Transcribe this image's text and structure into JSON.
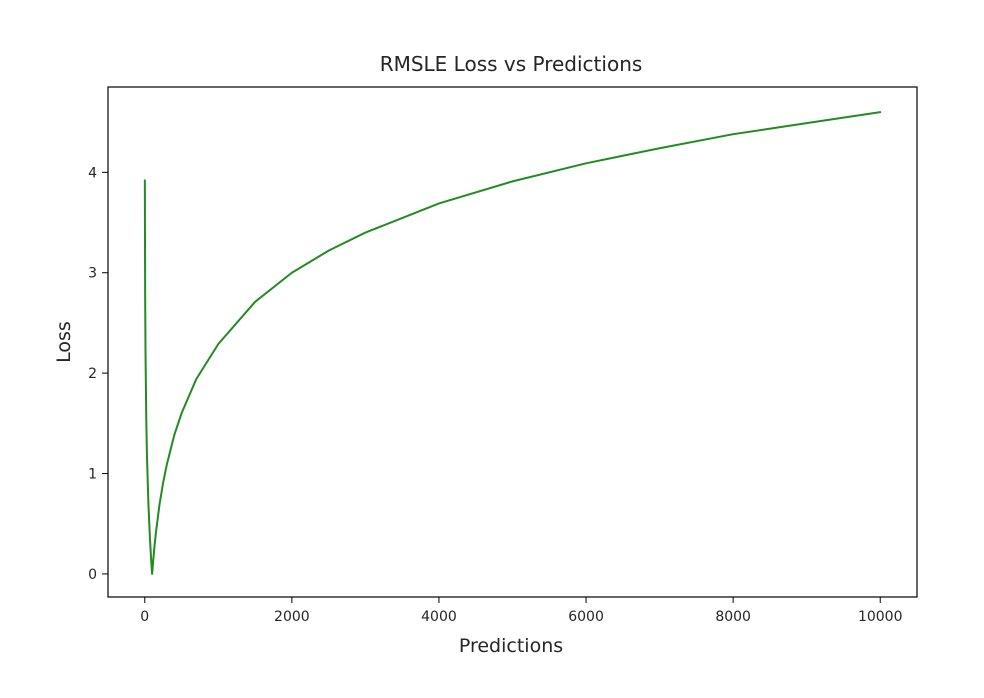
{
  "chart_data": {
    "type": "line",
    "title": "RMSLE Loss vs Predictions",
    "xlabel": "Predictions",
    "ylabel": "Loss",
    "xlim": [
      -500,
      10500
    ],
    "ylim": [
      -0.23,
      4.85
    ],
    "x_ticks": [
      0,
      2000,
      4000,
      6000,
      8000,
      10000
    ],
    "y_ticks": [
      0,
      1,
      2,
      3,
      4
    ],
    "x_tick_labels": [
      "0",
      "2000",
      "4000",
      "6000",
      "8000",
      "10000"
    ],
    "y_tick_labels": [
      "0",
      "1",
      "2",
      "3",
      "4"
    ],
    "grid": false,
    "legend": "none",
    "series": [
      {
        "color": "#228b22",
        "x": [
          1,
          5,
          10,
          20,
          30,
          50,
          70,
          90,
          100,
          110,
          130,
          150,
          200,
          250,
          300,
          400,
          500,
          700,
          1000,
          1500,
          2000,
          2500,
          3000,
          4000,
          5000,
          6000,
          7000,
          8000,
          9000,
          10000
        ],
        "y": [
          3.92,
          2.81,
          2.21,
          1.57,
          1.17,
          0.69,
          0.36,
          0.1,
          0.0,
          0.09,
          0.26,
          0.4,
          0.69,
          0.91,
          1.09,
          1.38,
          1.6,
          1.94,
          2.29,
          2.71,
          3.0,
          3.22,
          3.4,
          3.69,
          3.91,
          4.09,
          4.24,
          4.38,
          4.49,
          4.6
        ]
      }
    ]
  }
}
